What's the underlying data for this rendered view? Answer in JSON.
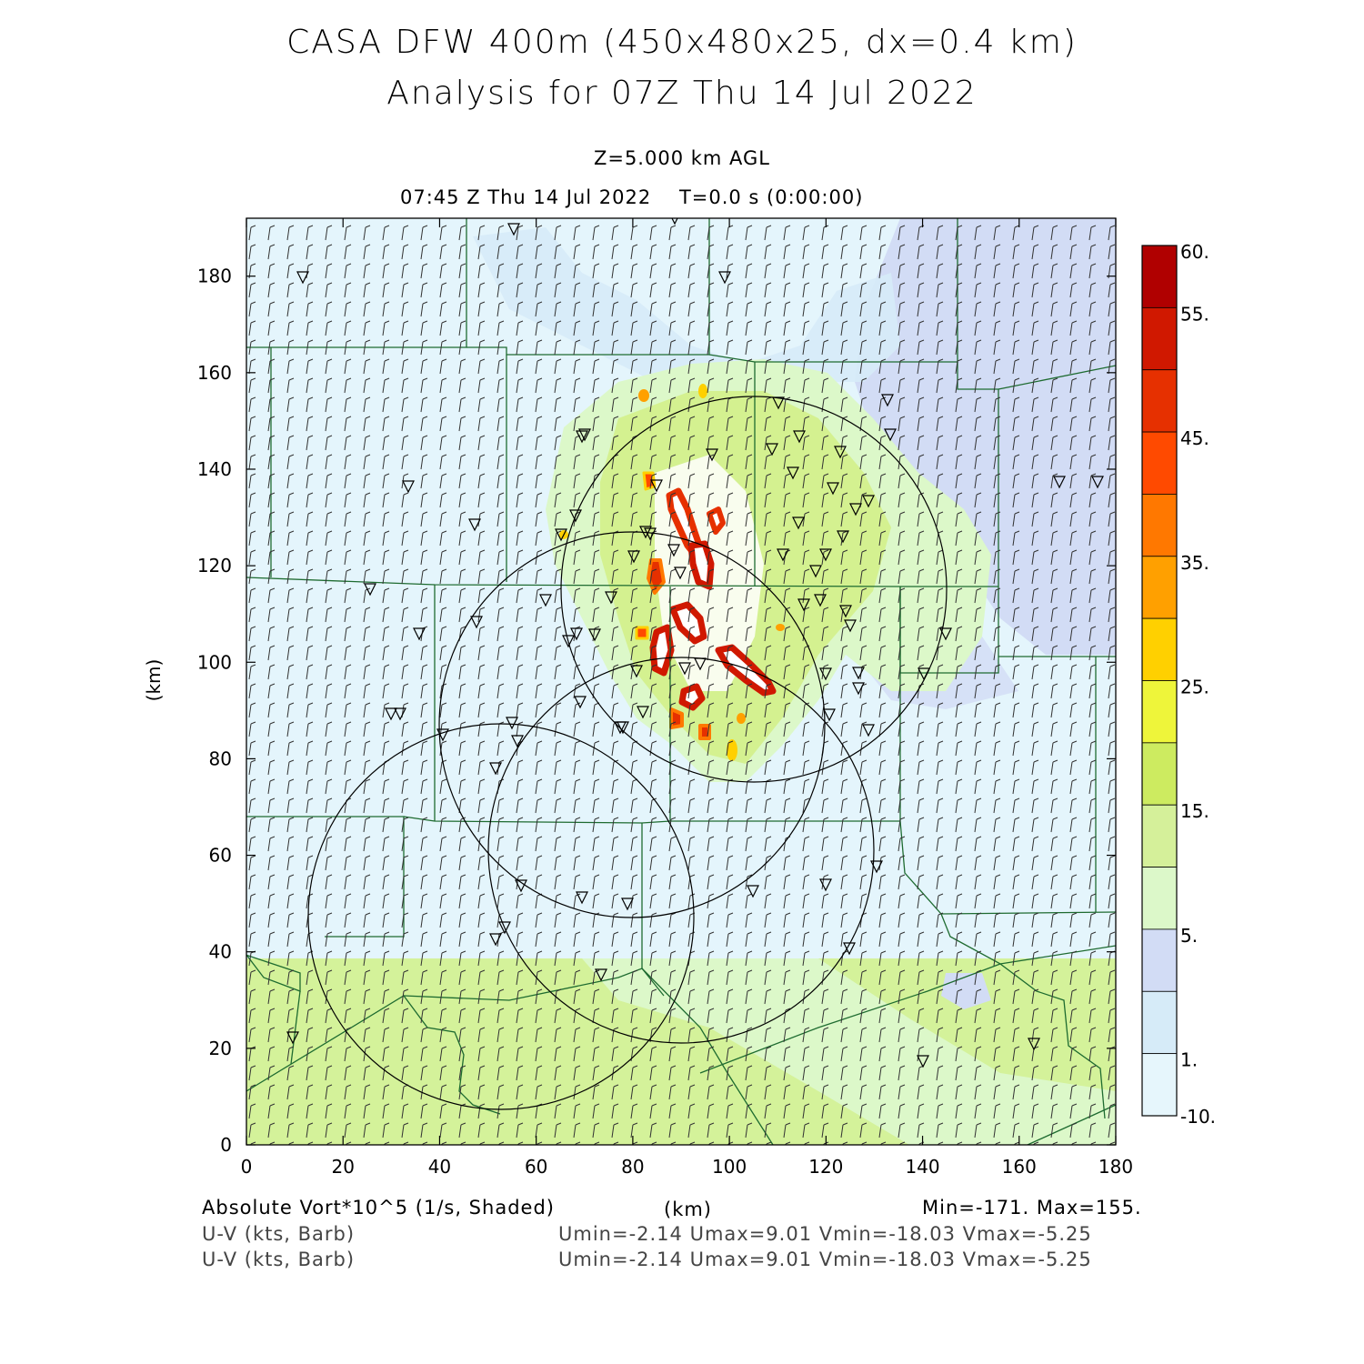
{
  "header": {
    "title_line1": "CASA DFW 400m (450x480x25, dx=0.4 km)",
    "title_line2": "Analysis for 07Z Thu 14 Jul 2022",
    "level": "Z=5.000 km AGL",
    "valid_time": "07:45 Z Thu 14 Jul 2022",
    "forecast_time": "T=0.0 s (0:00:00)"
  },
  "axes": {
    "x_label": "(km)",
    "y_label": "(km)",
    "x_ticks": [
      "0",
      "20",
      "40",
      "60",
      "80",
      "100",
      "120",
      "140",
      "160",
      "180"
    ],
    "y_ticks": [
      "0",
      "20",
      "40",
      "60",
      "80",
      "100",
      "120",
      "140",
      "160",
      "180"
    ],
    "x_range": [
      0,
      180
    ],
    "y_range": [
      0,
      192
    ]
  },
  "colorbar": {
    "labels": [
      "60.",
      "55.",
      "45.",
      "35.",
      "25.",
      "15.",
      "5.",
      "1.",
      "-10."
    ],
    "colors": [
      "#b00000",
      "#d01800",
      "#e63000",
      "#ff4a00",
      "#ff7800",
      "#ffa000",
      "#ffd000",
      "#eef53a",
      "#cdeb60",
      "#d5f09a",
      "#dcf8c9",
      "#d2dcf5",
      "#d6ebf8",
      "#e6f6fc"
    ]
  },
  "footer": {
    "field_label": "Absolute Vort*10^5 (1/s, Shaded)",
    "axis_unit": "(km)",
    "minmax": "Min=-171. Max=155.",
    "barb_label_1": "U-V (kts, Barb)",
    "barb_stats_1": "Umin=-2.14 Umax=9.01 Vmin=-18.03 Vmax=-5.25",
    "barb_label_2": "U-V (kts, Barb)",
    "barb_stats_2": "Umin=-2.14 Umax=9.01 Vmin=-18.03 Vmax=-5.25"
  },
  "colors": {
    "background_field": "#e4f5fc",
    "south_band": "#d4f29a",
    "county_lines": "#1e6b30",
    "range_rings": "#000000"
  }
}
